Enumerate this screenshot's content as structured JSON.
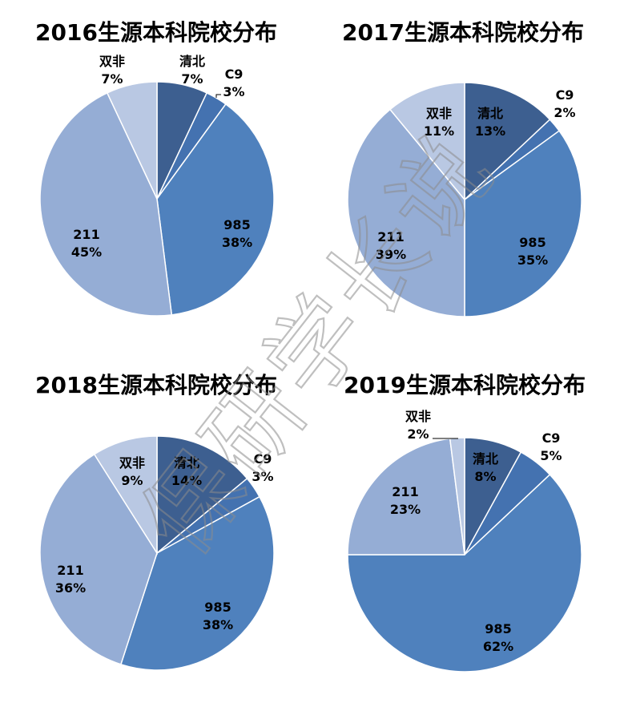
{
  "watermark": [
    "保",
    "研",
    "学",
    "长",
    "说"
  ],
  "colors": {
    "清北": "#3d5f90",
    "C9": "#4472b0",
    "985": "#4f81bd",
    "211": "#95add5",
    "双非": "#b9c8e3"
  },
  "chart_data": [
    {
      "type": "pie",
      "title": "2016生源本科院校分布",
      "categories": [
        "清北",
        "C9",
        "985",
        "211",
        "双非"
      ],
      "values": [
        7,
        3,
        38,
        45,
        7
      ],
      "value_labels": [
        "7%",
        "3%",
        "38%",
        "45%",
        "7%"
      ]
    },
    {
      "type": "pie",
      "title": "2017生源本科院校分布",
      "categories": [
        "清北",
        "C9",
        "985",
        "211",
        "双非"
      ],
      "values": [
        13,
        2,
        35,
        39,
        11
      ],
      "value_labels": [
        "13%",
        "2%",
        "35%",
        "39%",
        "11%"
      ]
    },
    {
      "type": "pie",
      "title": "2018生源本科院校分布",
      "categories": [
        "清北",
        "C9",
        "985",
        "211",
        "双非"
      ],
      "values": [
        14,
        3,
        38,
        36,
        9
      ],
      "value_labels": [
        "14%",
        "3%",
        "38%",
        "36%",
        "9%"
      ]
    },
    {
      "type": "pie",
      "title": "2019生源本科院校分布",
      "categories": [
        "清北",
        "C9",
        "985",
        "211",
        "双非"
      ],
      "values": [
        8,
        5,
        62,
        23,
        2
      ],
      "value_labels": [
        "8%",
        "5%",
        "62%",
        "23%",
        "2%"
      ]
    }
  ]
}
